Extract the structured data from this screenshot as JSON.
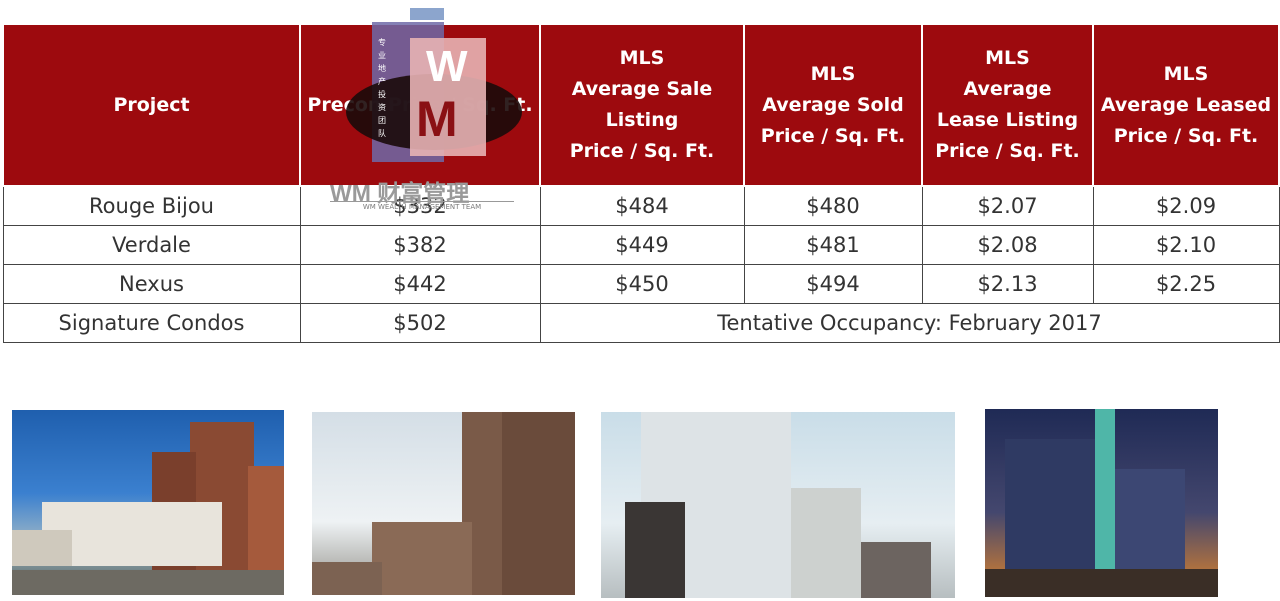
{
  "table": {
    "headers": [
      [
        "Project"
      ],
      [
        "Precon Price / Sq. Ft."
      ],
      [
        "MLS",
        "Average Sale",
        "Listing",
        "Price / Sq. Ft."
      ],
      [
        "MLS",
        "Average Sold",
        "Price / Sq. Ft."
      ],
      [
        "MLS",
        "Average",
        "Lease Listing",
        "Price / Sq. Ft."
      ],
      [
        "MLS",
        "Average Leased",
        "Price / Sq. Ft."
      ]
    ],
    "rows": [
      [
        "Rouge Bijou",
        "$332",
        "$484",
        "$480",
        "$2.07",
        "$2.09"
      ],
      [
        "Verdale",
        "$382",
        "$449",
        "$481",
        "$2.08",
        "$2.10"
      ],
      [
        "Nexus",
        "$442",
        "$450",
        "$494",
        "$2.13",
        "$2.25"
      ]
    ],
    "last_row": {
      "project": "Signature Condos",
      "precon": "$502",
      "note": "Tentative Occupancy: February 2017"
    }
  },
  "watermark": {
    "text": "WM 财富管理",
    "sub": "WM WEALTH MANAGEMENT TEAM",
    "letters": [
      "W",
      "M"
    ],
    "vertical_cn": "专业地产投资团队"
  },
  "colors": {
    "header_bg": "#9d0a0e",
    "header_text": "#ffffff",
    "border": "#444444"
  }
}
